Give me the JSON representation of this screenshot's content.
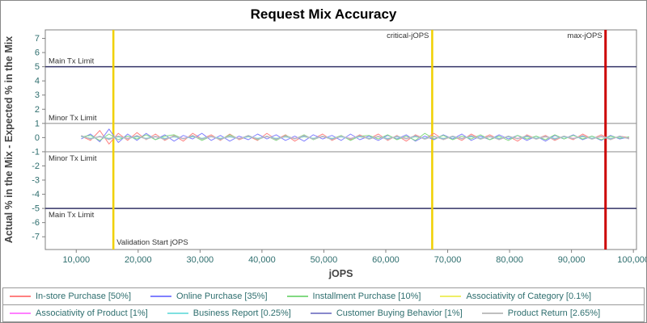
{
  "title": "Request Mix Accuracy",
  "colors": {
    "axis_text": "#2e6e6e",
    "plot_border": "#808080",
    "ref_main": "#333366",
    "ref_minor": "#999999",
    "ref_validation": "#f0d000",
    "ref_max": "#cc0000",
    "ref_label": "#333333"
  },
  "chart_data": {
    "type": "line",
    "title": "Request Mix Accuracy",
    "xlabel": "jOPS",
    "ylabel": "Actual % in the Mix - Expected % in the Mix",
    "xlim": [
      5000,
      100500
    ],
    "ylim": [
      -7.9,
      7.6
    ],
    "grid": false,
    "legend_position": "bottom",
    "x_ticks": [
      {
        "v": 10000,
        "label": "10,000"
      },
      {
        "v": 20000,
        "label": "20,000"
      },
      {
        "v": 30000,
        "label": "30,000"
      },
      {
        "v": 40000,
        "label": "40,000"
      },
      {
        "v": 50000,
        "label": "50,000"
      },
      {
        "v": 60000,
        "label": "60,000"
      },
      {
        "v": 70000,
        "label": "70,000"
      },
      {
        "v": 80000,
        "label": "80,000"
      },
      {
        "v": 90000,
        "label": "90,000"
      },
      {
        "v": 100000,
        "label": "100,000"
      }
    ],
    "y_ticks": [
      -7,
      -6,
      -5,
      -4,
      -3,
      -2,
      -1,
      0,
      1,
      2,
      3,
      4,
      5,
      6,
      7
    ],
    "reference_lines_horizontal": [
      {
        "y": 5,
        "label": "Main Tx Limit",
        "color_key": "ref_main",
        "width": 1.5,
        "label_side": "above"
      },
      {
        "y": 1,
        "label": "Minor Tx Limit",
        "color_key": "ref_minor",
        "width": 1.2,
        "label_side": "above"
      },
      {
        "y": -1,
        "label": "Minor Tx Limit",
        "color_key": "ref_minor",
        "width": 1.2,
        "label_side": "below"
      },
      {
        "y": -5,
        "label": "Main Tx Limit",
        "color_key": "ref_main",
        "width": 1.5,
        "label_side": "below"
      }
    ],
    "reference_lines_vertical": [
      {
        "x": 16000,
        "label": "Validation Start jOPS",
        "color_key": "ref_validation",
        "width": 2.5,
        "label_pos": "bottom-right"
      },
      {
        "x": 67500,
        "label": "critical-jOPS",
        "color_key": "ref_validation",
        "width": 2.5,
        "label_pos": "top-left"
      },
      {
        "x": 95500,
        "label": "max-jOPS",
        "color_key": "ref_max",
        "width": 3,
        "label_pos": "top-left"
      }
    ],
    "x": [
      10800,
      12300,
      13800,
      15300,
      16800,
      18300,
      19800,
      21300,
      22800,
      24300,
      25800,
      27300,
      28800,
      30300,
      31800,
      33300,
      34800,
      36300,
      37800,
      39300,
      40800,
      42300,
      43800,
      45300,
      46800,
      48300,
      49800,
      51300,
      52800,
      54300,
      55800,
      57300,
      58800,
      60300,
      61800,
      63300,
      64800,
      66300,
      67800,
      69300,
      70800,
      72300,
      73800,
      75300,
      76800,
      78300,
      79800,
      81300,
      82800,
      84300,
      85800,
      87300,
      88800,
      90300,
      91800,
      93300,
      94800,
      96300,
      97800,
      99300
    ],
    "series": [
      {
        "name": "In-store Purchase [50%]",
        "color": "#ff8080",
        "values": [
          0.1,
          -0.2,
          0.5,
          -0.45,
          0.3,
          -0.2,
          0.35,
          -0.15,
          0.25,
          -0.2,
          0.15,
          -0.25,
          0.3,
          -0.1,
          0.2,
          -0.2,
          0.25,
          -0.15,
          0.1,
          -0.2,
          0.3,
          -0.15,
          0.2,
          -0.25,
          0.15,
          -0.1,
          0.25,
          -0.2,
          0.1,
          -0.15,
          0.2,
          -0.1,
          0.25,
          -0.2,
          0.15,
          -0.25,
          0.2,
          -0.1,
          0.3,
          -0.15,
          0.1,
          -0.2,
          0.25,
          -0.1,
          0.2,
          -0.15,
          0.1,
          -0.25,
          0.2,
          -0.1,
          0.15,
          -0.2,
          0.1,
          -0.15,
          0.25,
          -0.1,
          0.2,
          -0.15,
          0.1,
          0
        ]
      },
      {
        "name": "Online Purchase [35%]",
        "color": "#8080ff",
        "values": [
          -0.1,
          0.25,
          -0.3,
          0.6,
          -0.35,
          0.25,
          -0.2,
          0.3,
          -0.15,
          0.2,
          -0.25,
          0.15,
          -0.1,
          0.3,
          -0.2,
          0.15,
          -0.25,
          0.1,
          -0.15,
          0.25,
          -0.1,
          0.2,
          -0.2,
          0.1,
          -0.25,
          0.2,
          -0.1,
          0.15,
          -0.2,
          0.25,
          -0.15,
          0.1,
          -0.2,
          0.15,
          -0.1,
          0.2,
          -0.25,
          0.1,
          -0.15,
          0.2,
          -0.1,
          0.25,
          -0.2,
          0.1,
          -0.15,
          0.2,
          -0.1,
          0.15,
          -0.2,
          0.1,
          -0.25,
          0.15,
          -0.1,
          0.2,
          -0.15,
          0.1,
          -0.2,
          0.15,
          -0.1,
          0.05
        ]
      },
      {
        "name": "Installment Purchase [10%]",
        "color": "#82d982",
        "values": [
          0.05,
          0.15,
          -0.2,
          0.25,
          -0.15,
          0.1,
          -0.1,
          0.2,
          -0.15,
          0.1,
          0.2,
          -0.1,
          0.15,
          -0.2,
          0.1,
          -0.15,
          0.2,
          -0.1,
          0.15,
          -0.15,
          0.1,
          -0.2,
          0.15,
          -0.1,
          0.2,
          -0.15,
          0.1,
          -0.1,
          0.15,
          -0.2,
          0.1,
          0.15,
          -0.1,
          0.2,
          -0.15,
          0.1,
          -0.2,
          0.3,
          -0.1,
          0.15,
          -0.15,
          0.1,
          -0.1,
          0.2,
          -0.15,
          0.1,
          -0.2,
          0.15,
          -0.1,
          0.1,
          -0.15,
          0.2,
          -0.1,
          0.15,
          -0.1,
          0.1,
          -0.15,
          0.1,
          -0.05,
          0.05
        ]
      },
      {
        "name": "Associativity of Category [0.1%]",
        "color": "#eeee66",
        "values": [
          0.05,
          -0.05,
          0.05,
          -0.05,
          0.05,
          -0.05,
          0.05,
          -0.05,
          0.05,
          -0.05,
          0.05,
          -0.05,
          0.05,
          -0.05,
          0.05,
          -0.05,
          0.05,
          -0.05,
          0.05,
          -0.05,
          0.05,
          -0.05,
          0.05,
          -0.05,
          0.05,
          -0.05,
          0.05,
          -0.05,
          0.05,
          -0.05,
          0.05,
          -0.05,
          0.05,
          -0.05,
          0.05,
          -0.05,
          0.05,
          -0.05,
          0.05,
          -0.05,
          0.05,
          -0.05,
          0.05,
          -0.05,
          0.05,
          -0.05,
          0.05,
          -0.05,
          0.05,
          -0.05,
          0.05,
          -0.05,
          0.05,
          -0.05,
          0.05,
          -0.05,
          0.05,
          -0.05,
          0.05,
          -0.05
        ]
      },
      {
        "name": "Associativity of Product [1%]",
        "color": "#ff80ff",
        "values": [
          0.1,
          -0.08,
          0.06,
          -0.1,
          0.08,
          -0.06,
          0.1,
          -0.08,
          0.06,
          -0.1,
          0.08,
          -0.06,
          0.1,
          -0.08,
          0.06,
          -0.1,
          0.08,
          -0.06,
          0.1,
          -0.08,
          0.06,
          -0.1,
          0.08,
          -0.06,
          0.1,
          -0.08,
          0.06,
          -0.1,
          0.08,
          -0.06,
          0.1,
          -0.08,
          0.06,
          -0.1,
          0.08,
          -0.06,
          0.1,
          -0.08,
          0.06,
          -0.1,
          0.08,
          -0.06,
          0.1,
          -0.08,
          0.06,
          -0.1,
          0.08,
          -0.06,
          0.1,
          -0.08,
          0.06,
          -0.1,
          0.08,
          -0.06,
          0.1,
          -0.08,
          0.06,
          -0.1,
          0.08,
          -0.06
        ]
      },
      {
        "name": "Business Report [0.25%]",
        "color": "#7fe0e0",
        "values": [
          0.06,
          -0.05,
          0.08,
          -0.06,
          0.05,
          -0.08,
          0.06,
          -0.05,
          0.08,
          -0.06,
          0.05,
          -0.08,
          0.06,
          -0.05,
          0.08,
          -0.06,
          0.05,
          -0.08,
          0.06,
          -0.05,
          0.08,
          -0.06,
          0.05,
          -0.08,
          0.06,
          -0.05,
          0.08,
          -0.06,
          0.05,
          -0.08,
          0.06,
          -0.05,
          0.08,
          -0.06,
          0.05,
          -0.08,
          0.06,
          -0.05,
          0.08,
          -0.06,
          0.05,
          -0.08,
          0.06,
          -0.05,
          0.08,
          -0.06,
          0.05,
          -0.08,
          0.06,
          -0.05,
          0.08,
          -0.06,
          0.05,
          -0.08,
          0.06,
          -0.05,
          0.08,
          -0.06,
          0.05,
          -0.08
        ]
      },
      {
        "name": "Customer Buying Behavior [1%]",
        "color": "#8888cc",
        "values": [
          0.12,
          -0.1,
          0.08,
          -0.12,
          0.1,
          -0.08,
          0.12,
          -0.1,
          0.08,
          -0.12,
          0.1,
          -0.08,
          0.12,
          -0.1,
          0.08,
          -0.12,
          0.1,
          -0.08,
          0.12,
          -0.1,
          0.08,
          -0.12,
          0.1,
          -0.08,
          0.12,
          -0.1,
          0.08,
          -0.12,
          0.1,
          -0.08,
          0.12,
          -0.1,
          0.08,
          -0.12,
          0.1,
          -0.08,
          0.12,
          -0.1,
          0.08,
          -0.12,
          0.1,
          -0.08,
          0.12,
          -0.1,
          0.08,
          -0.12,
          0.1,
          -0.08,
          0.12,
          -0.1,
          0.08,
          -0.12,
          0.1,
          -0.08,
          0.12,
          -0.1,
          0.08,
          -0.12,
          0.1,
          -0.08
        ]
      },
      {
        "name": "Product Return [2.65%]",
        "color": "#bfbfbf",
        "values": [
          0.15,
          -0.12,
          0.1,
          -0.15,
          0.12,
          -0.1,
          0.15,
          -0.12,
          0.1,
          -0.15,
          0.12,
          -0.1,
          0.15,
          -0.12,
          0.1,
          -0.15,
          0.12,
          -0.1,
          0.15,
          -0.12,
          0.1,
          -0.15,
          0.12,
          -0.1,
          0.15,
          -0.12,
          0.1,
          -0.15,
          0.12,
          -0.1,
          0.15,
          -0.12,
          0.1,
          -0.15,
          0.12,
          -0.1,
          0.15,
          -0.12,
          0.1,
          -0.15,
          0.12,
          -0.1,
          0.15,
          -0.12,
          0.1,
          -0.15,
          0.12,
          -0.1,
          0.15,
          -0.12,
          0.1,
          -0.15,
          0.12,
          -0.1,
          0.15,
          -0.12,
          0.1,
          -0.15,
          0.12,
          -0.1
        ]
      }
    ],
    "legend_rows": [
      [
        0,
        1,
        2,
        3
      ],
      [
        4,
        5,
        6,
        7
      ]
    ]
  }
}
